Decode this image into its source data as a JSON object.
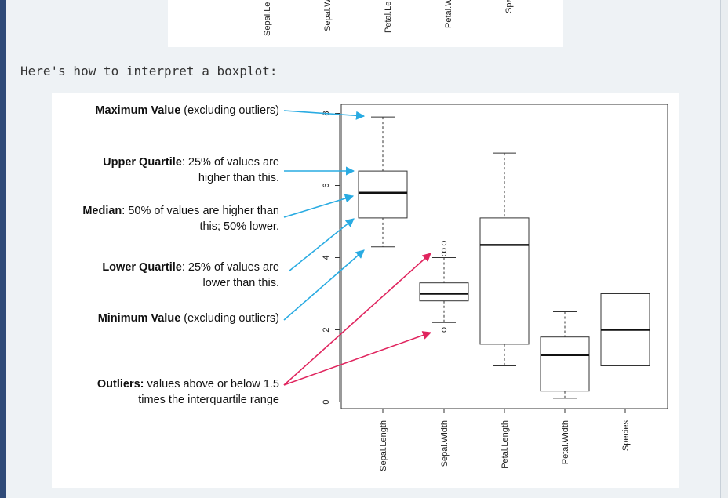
{
  "top_figure": {
    "labels": [
      "Sepal.Le",
      "Sepal.W",
      "Petal.Le",
      "Petal.W",
      "Spe"
    ]
  },
  "intro_text": "Here's how to interpret a boxplot:",
  "annotations": [
    {
      "bold": "Maximum Value",
      "rest": " (excluding outliers)",
      "line2": ""
    },
    {
      "bold": "Upper Quartile",
      "rest": ": 25% of values are",
      "line2": "higher than this."
    },
    {
      "bold": "Median",
      "rest": ": 50% of values are higher than",
      "line2": "this; 50% lower."
    },
    {
      "bold": "Lower Quartile",
      "rest": ": 25% of values are",
      "line2": "lower than this."
    },
    {
      "bold": "Minimum Value",
      "rest": " (excluding outliers)",
      "line2": ""
    },
    {
      "bold": "Outliers:",
      "rest": " values above or below 1.5",
      "line2": "times the interquartile range"
    }
  ],
  "colors": {
    "arrow_blue": "#29abe2",
    "arrow_pink": "#e0245e",
    "page_bg": "#eef2f5",
    "frame": "#2f4a78"
  },
  "chart_data": {
    "type": "boxplot",
    "categories": [
      "Sepal.Length",
      "Sepal.Width",
      "Petal.Length",
      "Petal.Width",
      "Species"
    ],
    "boxes": [
      {
        "min": 4.3,
        "q1": 5.1,
        "median": 5.8,
        "q3": 6.4,
        "max": 7.9,
        "outliers": []
      },
      {
        "min": 2.2,
        "q1": 2.8,
        "median": 3.0,
        "q3": 3.3,
        "max": 4.0,
        "outliers": [
          4.1,
          4.2,
          4.4,
          2.0
        ]
      },
      {
        "min": 1.0,
        "q1": 1.6,
        "median": 4.35,
        "q3": 5.1,
        "max": 6.9,
        "outliers": []
      },
      {
        "min": 0.1,
        "q1": 0.3,
        "median": 1.3,
        "q3": 1.8,
        "max": 2.5,
        "outliers": []
      },
      {
        "min": 1.0,
        "q1": 1.0,
        "median": 2.0,
        "q3": 3.0,
        "max": 3.0,
        "outliers": []
      }
    ],
    "yticks": [
      0,
      2,
      4,
      6,
      8
    ],
    "ylim": [
      0,
      8
    ]
  }
}
